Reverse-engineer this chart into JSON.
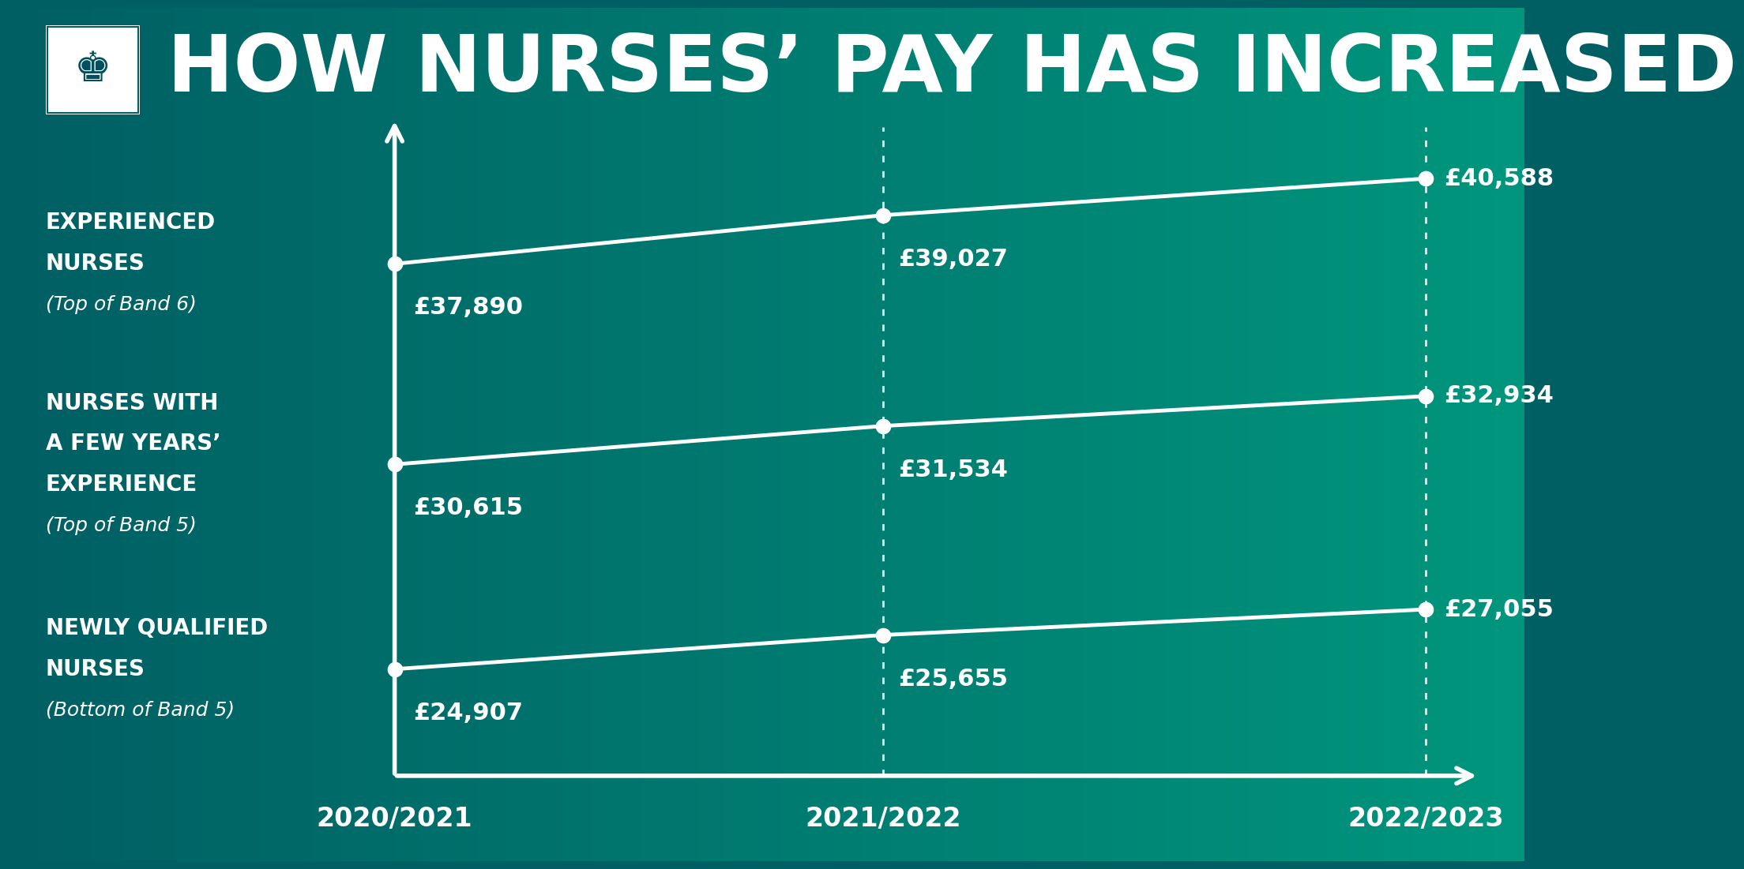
{
  "title": "HOW NURSES’ PAY HAS INCREASED",
  "bg_left": "#005f63",
  "bg_right": "#00967d",
  "line_color": "#ffffff",
  "text_color": "#ffffff",
  "years": [
    "2020/2021",
    "2021/2022",
    "2022/2023"
  ],
  "series": [
    {
      "labels": [
        "EXPERIENCED",
        "NURSES",
        "(Top of Band 6)"
      ],
      "values": [
        37890,
        39027,
        40588
      ],
      "formatted": [
        "£37,890",
        "£39,027",
        "£40,588"
      ]
    },
    {
      "labels": [
        "NURSES WITH",
        "A FEW YEARS’",
        "EXPERIENCE",
        "(Top of Band 5)"
      ],
      "values": [
        30615,
        31534,
        32934
      ],
      "formatted": [
        "£30,615",
        "£31,534",
        "£32,934"
      ]
    },
    {
      "labels": [
        "NEWLY QUALIFIED",
        "NURSES",
        "(Bottom of Band 5)"
      ],
      "values": [
        24907,
        25655,
        27055
      ],
      "formatted": [
        "£24,907",
        "£25,655",
        "£27,055"
      ]
    }
  ],
  "title_fontsize": 72,
  "label_bold_fontsize": 20,
  "label_italic_fontsize": 18,
  "value_fontsize": 22,
  "year_fontsize": 24
}
